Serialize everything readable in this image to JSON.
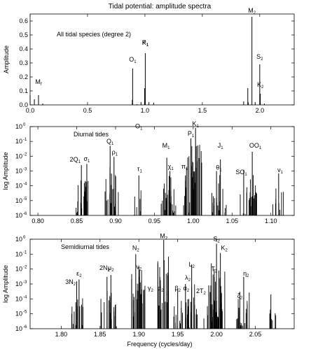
{
  "title": "Tidal potential: amplitude spectra",
  "xlabel": "Frequency (cycles/day)",
  "chart_data": [
    {
      "type": "bar",
      "scale": "linear",
      "annotation": "All tidal species (degree 2)",
      "ylabel": "Amplitude",
      "xlim": [
        0,
        2.3
      ],
      "ylim": [
        0,
        0.65
      ],
      "xticks": [
        "0.0",
        "0.5",
        "1.0",
        "1.5",
        "2.0"
      ],
      "yticks": [
        "0.0",
        "0.1",
        "0.2",
        "0.3",
        "0.4",
        "0.5",
        "0.6"
      ],
      "lines": [
        {
          "x": 0.0,
          "y": 0.07
        },
        {
          "x": 0.037,
          "y": 0.04
        },
        {
          "x": 0.073,
          "y": 0.07
        },
        {
          "x": 0.11,
          "y": 0.01
        },
        {
          "x": 0.89,
          "y": 0.035
        },
        {
          "x": 0.893,
          "y": 0.26
        },
        {
          "x": 0.93,
          "y": 0.005
        },
        {
          "x": 0.966,
          "y": 0.02
        },
        {
          "x": 0.997,
          "y": 0.12
        },
        {
          "x": 1.003,
          "y": 0.37
        },
        {
          "x": 1.035,
          "y": 0.02
        },
        {
          "x": 1.076,
          "y": 0.016
        },
        {
          "x": 1.86,
          "y": 0.025
        },
        {
          "x": 1.896,
          "y": 0.12
        },
        {
          "x": 1.9,
          "y": 0.018
        },
        {
          "x": 1.932,
          "y": 0.63
        },
        {
          "x": 1.96,
          "y": 0.02
        },
        {
          "x": 2.0,
          "y": 0.29
        },
        {
          "x": 2.005,
          "y": 0.08
        },
        {
          "x": 2.04,
          "y": 0.01
        }
      ],
      "labels": [
        {
          "text": "M",
          "sub": "f",
          "x": 0.073,
          "y": 0.14
        },
        {
          "text": "O",
          "sub": "1",
          "x": 0.893,
          "y": 0.3
        },
        {
          "text": "P",
          "sub": "1",
          "x": 1.003,
          "y": 0.42
        },
        {
          "text": "K",
          "sub": "1",
          "x": 1.003,
          "y": 0.42
        },
        {
          "text": "M",
          "sub": "2",
          "x": 1.932,
          "y": 0.65
        },
        {
          "text": "S",
          "sub": "2",
          "x": 2.0,
          "y": 0.32
        },
        {
          "text": "K",
          "sub": "2",
          "x": 2.005,
          "y": 0.12
        }
      ]
    },
    {
      "type": "bar",
      "scale": "log",
      "annotation": "Diurnal tides",
      "ylabel": "log Amplitude",
      "xlim": [
        0.79,
        1.13
      ],
      "ylim": [
        1e-06,
        1
      ],
      "xticks": [
        "0.80",
        "0.85",
        "0.90",
        "0.95",
        "1.00",
        "1.05",
        "1.10"
      ],
      "yticks": [
        "10",
        "10",
        "10",
        "10",
        "10",
        "10",
        "10"
      ],
      "ytick_exponents": [
        "-6",
        "-5",
        "-4",
        "-3",
        "-2",
        "-1",
        "0"
      ],
      "peaks": [
        {
          "x": 0.856,
          "y": 0.0025
        },
        {
          "x": 0.863,
          "y": 0.003
        },
        {
          "x": 0.893,
          "y": 0.05
        },
        {
          "x": 0.898,
          "y": 0.009
        },
        {
          "x": 0.93,
          "y": 0.0005
        },
        {
          "x": 0.966,
          "y": 0.008
        },
        {
          "x": 0.97,
          "y": 0.001
        },
        {
          "x": 0.99,
          "y": 0.0005
        },
        {
          "x": 0.997,
          "y": 0.16
        },
        {
          "x": 1.003,
          "y": 0.8
        },
        {
          "x": 1.03,
          "y": 0.001
        },
        {
          "x": 1.035,
          "y": 0.006
        },
        {
          "x": 1.065,
          "y": 0.0012
        },
        {
          "x": 1.076,
          "y": 0.02
        },
        {
          "x": 1.11,
          "y": 0.0007
        }
      ],
      "labels": [
        {
          "text": "2Q",
          "sub": "1",
          "x": 0.848,
          "y": 0.0035
        },
        {
          "text": "σ",
          "sub": "1",
          "x": 0.863,
          "y": 0.004
        },
        {
          "text": "Q",
          "sub": "1",
          "x": 0.893,
          "y": 0.06
        },
        {
          "text": "ρ",
          "sub": "1",
          "x": 0.899,
          "y": 0.011
        },
        {
          "text": "O",
          "sub": "1",
          "x": 0.93,
          "y": 0.6
        },
        {
          "text": "τ",
          "sub": "1",
          "x": 0.931,
          "y": 0.0008
        },
        {
          "text": "M",
          "sub": "1",
          "x": 0.965,
          "y": 0.03
        },
        {
          "text": "χ",
          "sub": "1",
          "x": 0.971,
          "y": 0.0012
        },
        {
          "text": "π",
          "sub": "1",
          "x": 0.989,
          "y": 0.0012
        },
        {
          "text": "P",
          "sub": "1",
          "x": 0.997,
          "y": 0.2
        },
        {
          "text": "K",
          "sub": "1",
          "x": 1.003,
          "y": 0.9
        },
        {
          "text": "θ",
          "sub": "1",
          "x": 1.033,
          "y": 0.001
        },
        {
          "text": "J",
          "sub": "1",
          "x": 1.035,
          "y": 0.03
        },
        {
          "text": "SO",
          "sub": "1",
          "x": 1.062,
          "y": 0.0005
        },
        {
          "text": "OO",
          "sub": "1",
          "x": 1.08,
          "y": 0.03
        },
        {
          "text": "ν",
          "sub": "1",
          "x": 1.112,
          "y": 0.0007
        }
      ]
    },
    {
      "type": "bar",
      "scale": "log",
      "annotation": "Semidiurnal tides",
      "ylabel": "log Amplitude",
      "xlim": [
        1.76,
        2.1
      ],
      "ylim": [
        1e-06,
        1
      ],
      "xticks": [
        "1.80",
        "1.85",
        "1.90",
        "1.95",
        "2.00",
        "2.05"
      ],
      "yticks": [
        "10",
        "10",
        "10",
        "10",
        "10",
        "10",
        "10"
      ],
      "ytick_exponents": [
        "-6",
        "-5",
        "-4",
        "-3",
        "-2",
        "-1",
        "0"
      ],
      "peaks": [
        {
          "x": 1.82,
          "y": 0.0015
        },
        {
          "x": 1.823,
          "y": 0.002
        },
        {
          "x": 1.859,
          "y": 0.003
        },
        {
          "x": 1.864,
          "y": 0.004
        },
        {
          "x": 1.896,
          "y": 0.1
        },
        {
          "x": 1.9,
          "y": 0.015
        },
        {
          "x": 1.925,
          "y": 0.0005
        },
        {
          "x": 1.932,
          "y": 0.9
        },
        {
          "x": 1.95,
          "y": 0.0005
        },
        {
          "x": 1.96,
          "y": 0.001
        },
        {
          "x": 1.968,
          "y": 0.0006
        },
        {
          "x": 1.968,
          "y": 0.02
        },
        {
          "x": 1.99,
          "y": 0.0008
        },
        {
          "x": 1.997,
          "y": 0.01
        },
        {
          "x": 2.0,
          "y": 0.5
        },
        {
          "x": 2.005,
          "y": 0.12
        },
        {
          "x": 2.03,
          "y": 0.0003
        },
        {
          "x": 2.035,
          "y": 0.003
        },
        {
          "x": 2.07,
          "y": 0.0002
        }
      ],
      "labels": [
        {
          "text": "3N",
          "sub": "2",
          "x": 1.812,
          "y": 0.0008
        },
        {
          "text": "ε",
          "sub": "2",
          "x": 1.823,
          "y": 0.003
        },
        {
          "text": "2N",
          "sub": "2",
          "x": 1.856,
          "y": 0.007
        },
        {
          "text": "μ",
          "sub": "2",
          "x": 1.864,
          "y": 0.007
        },
        {
          "text": "N",
          "sub": "2",
          "x": 1.896,
          "y": 0.15
        },
        {
          "text": "ν",
          "sub": "2",
          "x": 1.9,
          "y": 0.008
        },
        {
          "text": "γ",
          "sub": "2",
          "x": 1.915,
          "y": 0.0003
        },
        {
          "text": "α",
          "sub": "2",
          "x": 1.928,
          "y": 0.0003
        },
        {
          "text": "M",
          "sub": "2",
          "x": 1.932,
          "y": 0.95
        },
        {
          "text": "β",
          "sub": "2",
          "x": 1.95,
          "y": 0.0003
        },
        {
          "text": "α",
          "sub": "2",
          "x": 1.961,
          "y": 0.0003
        },
        {
          "text": "λ",
          "sub": "2",
          "x": 1.963,
          "y": 0.0015
        },
        {
          "text": "L",
          "sub": "2",
          "x": 1.968,
          "y": 0.012
        },
        {
          "text": "2T",
          "sub": "2",
          "x": 1.98,
          "y": 0.0002
        },
        {
          "text": "T",
          "sub": "2",
          "x": 1.997,
          "y": 0.006
        },
        {
          "text": "S",
          "sub": "2",
          "x": 2.0,
          "y": 0.6
        },
        {
          "text": "K",
          "sub": "2",
          "x": 2.01,
          "y": 0.15
        },
        {
          "text": "ζ",
          "sub": "2",
          "x": 2.03,
          "y": 0.0001
        },
        {
          "text": "η",
          "sub": "2",
          "x": 2.038,
          "y": 0.003
        }
      ]
    }
  ]
}
